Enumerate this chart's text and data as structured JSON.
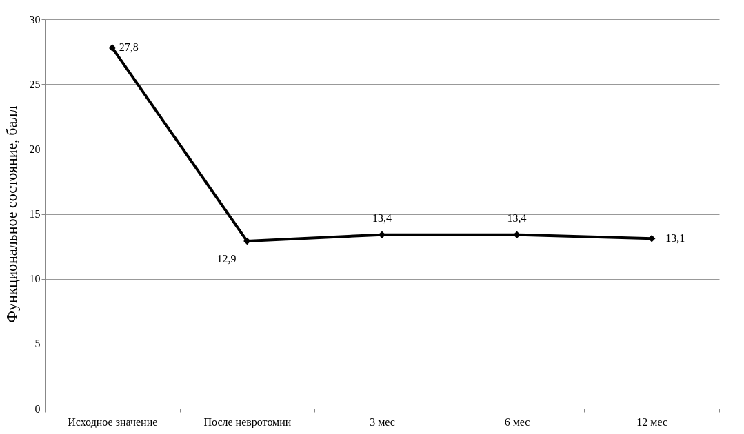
{
  "chart_data": {
    "type": "line",
    "ylabel": "Функциональное состояние, балл",
    "categories": [
      "Исходное значение",
      "После невротомии",
      "3 мес",
      "6 мес",
      "12 мес"
    ],
    "values": [
      27.8,
      12.9,
      13.4,
      13.4,
      13.1
    ],
    "value_labels": [
      "27,8",
      "12,9",
      "13,4",
      "13,4",
      "13,1"
    ],
    "color": "#000000",
    "marker": "diamond",
    "line_style": "solid",
    "ylim": [
      0,
      30
    ],
    "yticks": [
      0,
      5,
      10,
      15,
      20,
      25,
      30
    ],
    "grid": "y"
  }
}
